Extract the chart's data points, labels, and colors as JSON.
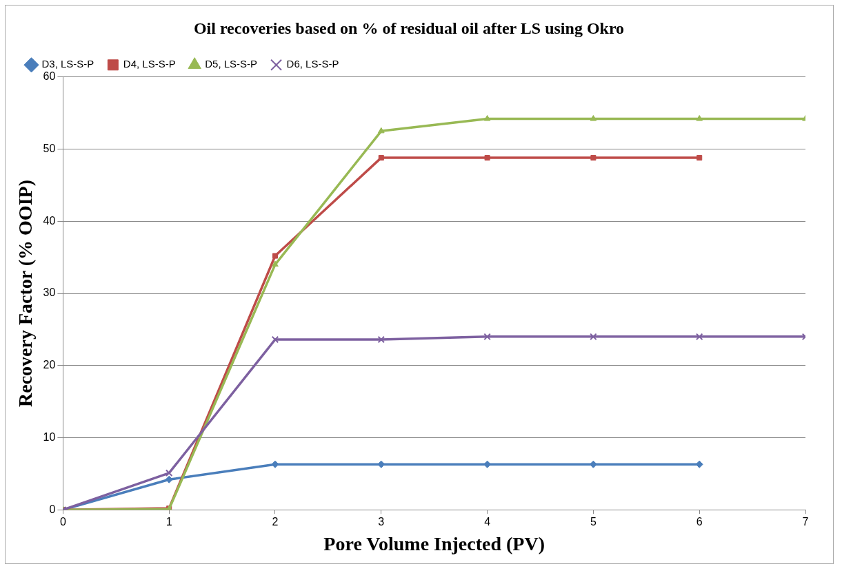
{
  "chart_data": {
    "type": "line",
    "title": "Oil recoveries based on % of residual oil after LS using Okro",
    "xlabel": "Pore Volume Injected (PV)",
    "ylabel": "Recovery Factor (% OOIP)",
    "xlim": [
      0,
      7
    ],
    "xticks": [
      0,
      1,
      2,
      3,
      4,
      5,
      6,
      7
    ],
    "ylim": [
      0,
      60
    ],
    "yticks": [
      0,
      10,
      20,
      30,
      40,
      50,
      60
    ],
    "grid": "y",
    "legend": "top left",
    "line_style": "solid",
    "series": [
      {
        "name": "D3, LS-S-P",
        "color": "#4a7ebb",
        "marker": "diamond",
        "x": [
          0,
          1,
          2,
          3,
          4,
          5,
          6
        ],
        "values": [
          0,
          4.2,
          6.3,
          6.3,
          6.3,
          6.3,
          6.3
        ]
      },
      {
        "name": "D4, LS-S-P",
        "color": "#be4b48",
        "marker": "square",
        "x": [
          0,
          1,
          2,
          3,
          4,
          5,
          6
        ],
        "values": [
          0,
          0.2,
          35.2,
          48.8,
          48.8,
          48.8,
          48.8
        ]
      },
      {
        "name": "D5, LS-S-P",
        "color": "#98b954",
        "marker": "triangle",
        "x": [
          0,
          1,
          2,
          3,
          4,
          5,
          6,
          7
        ],
        "values": [
          0,
          0.1,
          34,
          52.5,
          54.2,
          54.2,
          54.2,
          54.2
        ]
      },
      {
        "name": "D6, LS-S-P",
        "color": "#7d60a0",
        "marker": "cross",
        "x": [
          0,
          1,
          2,
          3,
          4,
          5,
          6,
          7
        ],
        "values": [
          0,
          5.1,
          23.6,
          23.6,
          24,
          24,
          24,
          24
        ]
      }
    ]
  }
}
